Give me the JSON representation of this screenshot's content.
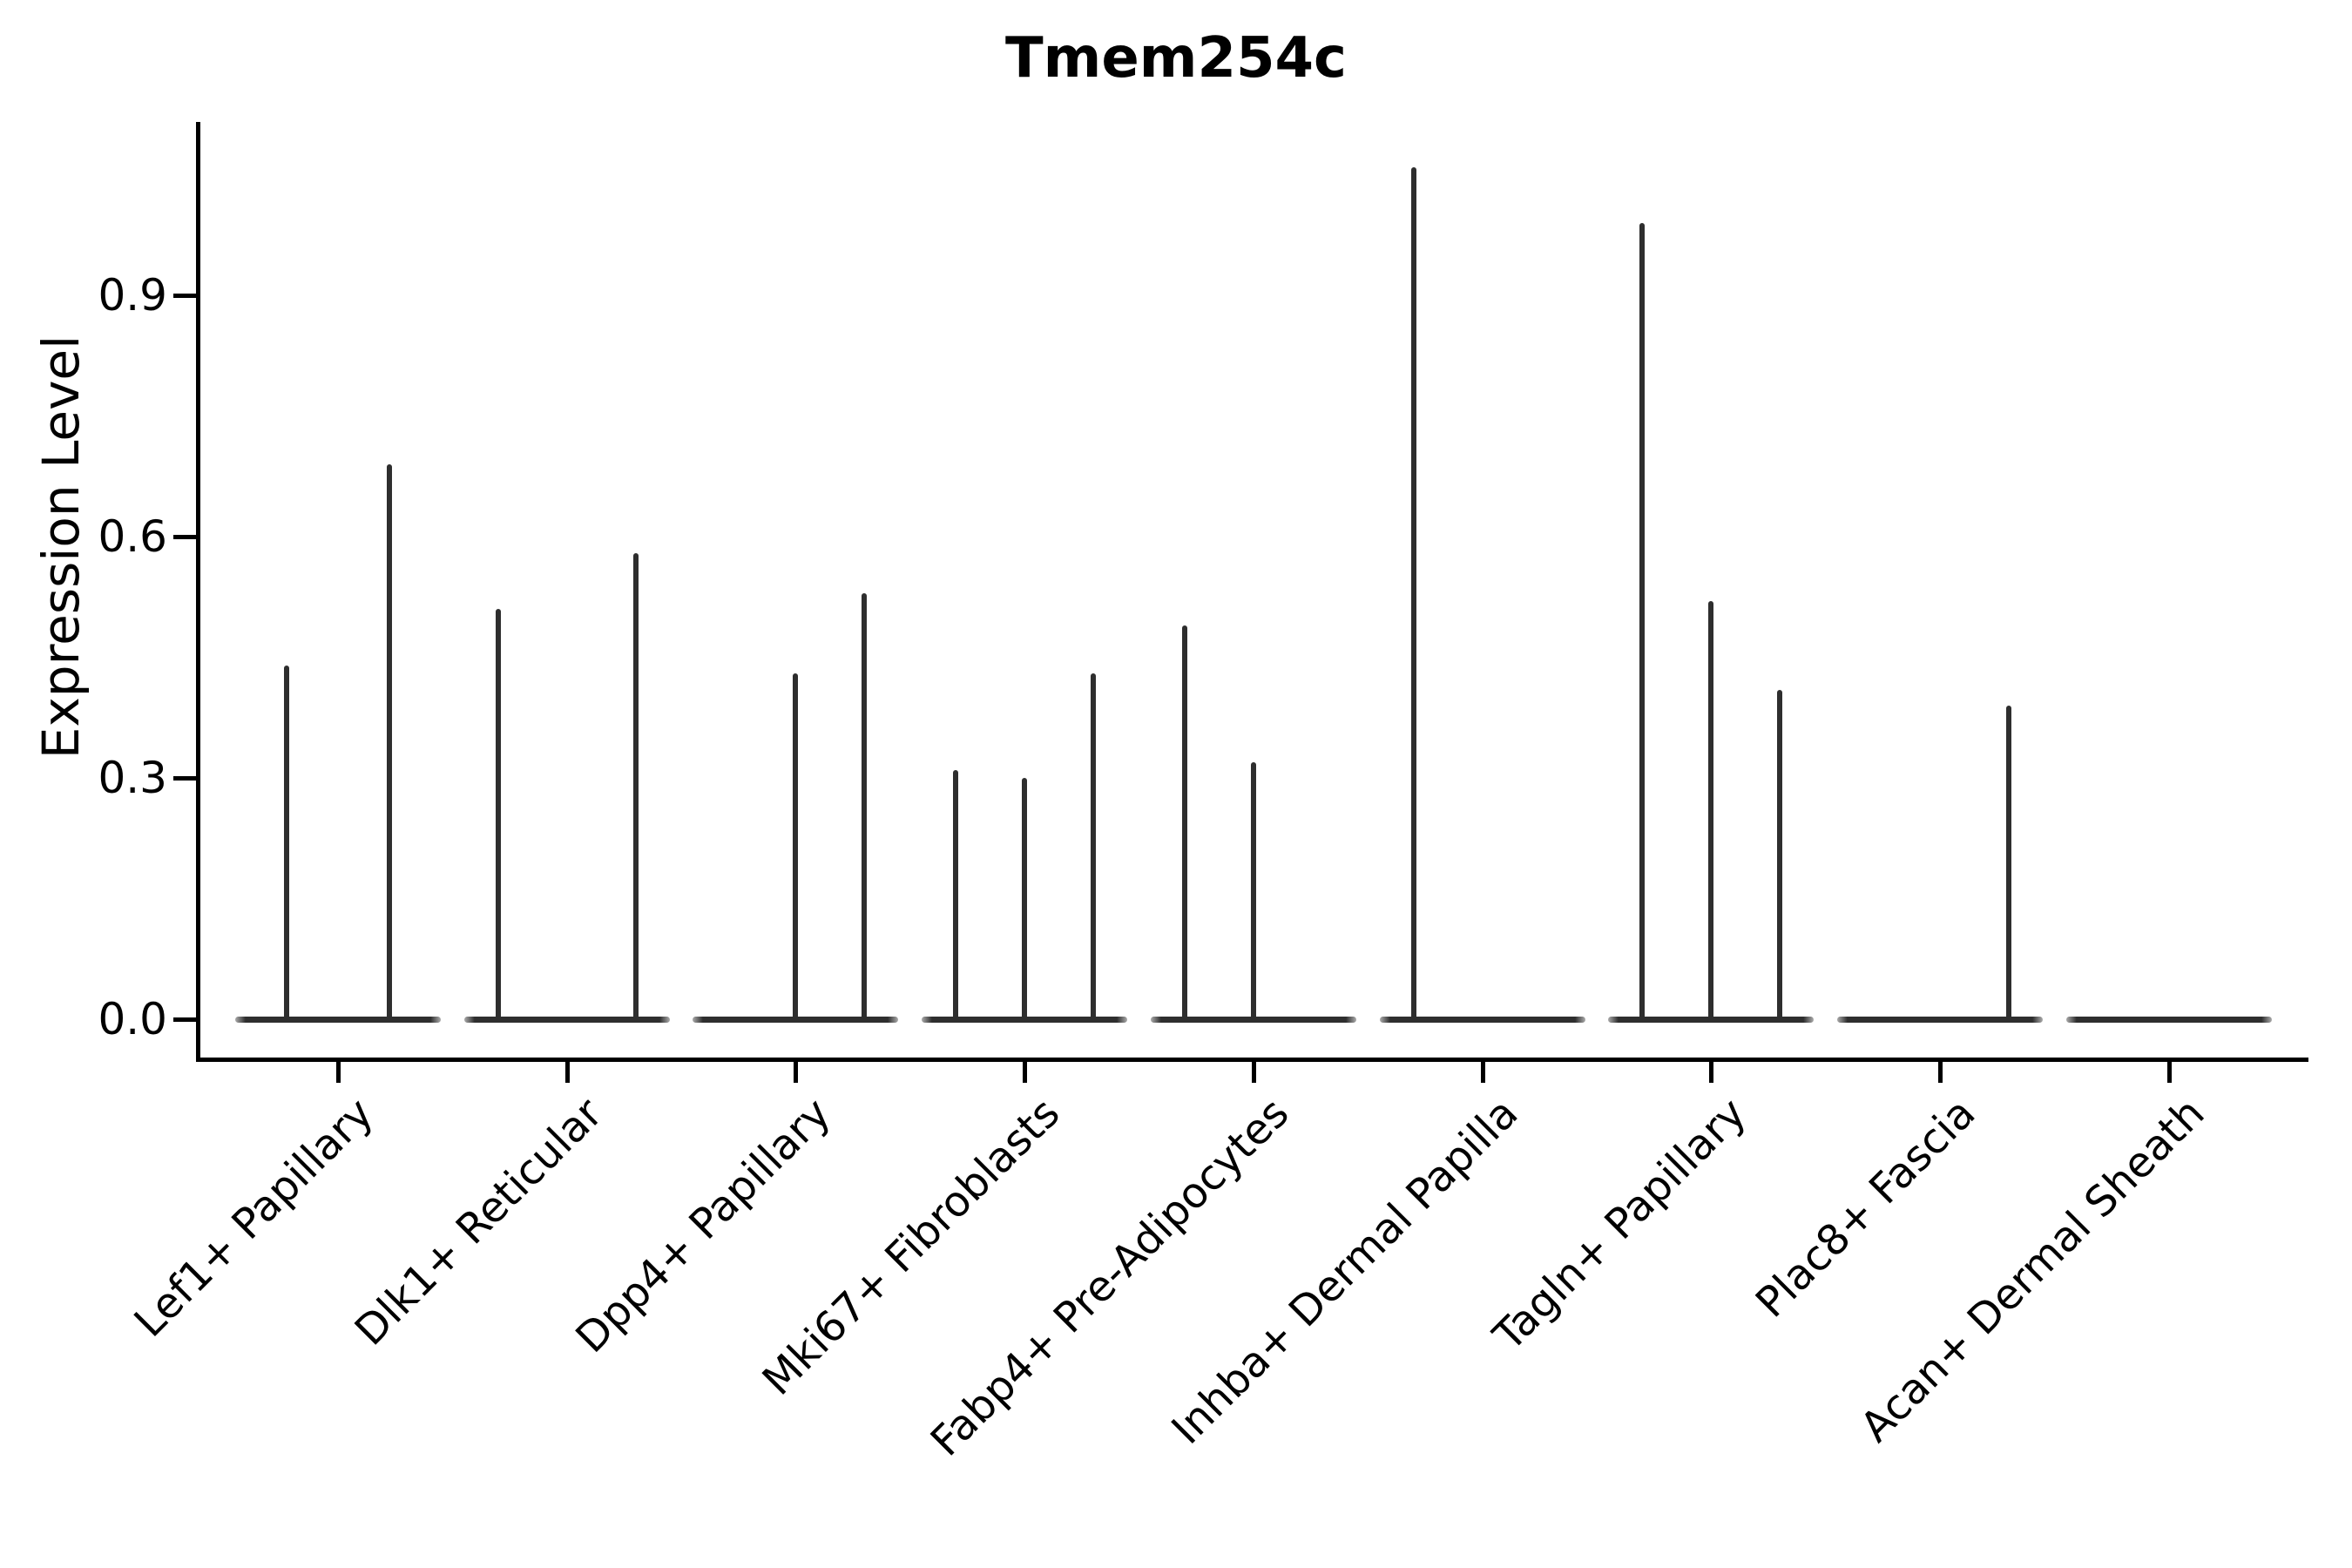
{
  "chart_data": {
    "type": "violin",
    "title": "Tmem254c",
    "xlabel": "",
    "ylabel": "Expression Level",
    "ylim": [
      -0.05,
      1.12
    ],
    "yticks": [
      {
        "value": 0.0,
        "label": "0.0"
      },
      {
        "value": 0.3,
        "label": "0.3"
      },
      {
        "value": 0.6,
        "label": "0.6"
      },
      {
        "value": 0.9,
        "label": "0.9"
      }
    ],
    "grid": false,
    "legend": "none",
    "ink_color": "#2e2e2e",
    "violin_style": "flat base at 0 expression with thin density spikes rising to each group's max expression",
    "categories": [
      "Lef1+ Papillary",
      "Dlk1+ Reticular",
      "Dpp4+ Papillary",
      "Mki67+ Fibroblasts",
      "Fabp4+ Pre-Adipocytes",
      "Inhba+ Dermal Papilla",
      "Tagln+ Papillary",
      "Plac8+ Fascia",
      "Acan+ Dermal Sheath"
    ],
    "violins": [
      {
        "category": "Lef1+ Papillary",
        "groups": [
          {
            "offset_frac": -0.225,
            "max_expression": 0.44
          },
          {
            "offset_frac": 0.225,
            "max_expression": 0.69
          }
        ]
      },
      {
        "category": "Dlk1+ Reticular",
        "groups": [
          {
            "offset_frac": -0.3,
            "max_expression": 0.51
          },
          {
            "offset_frac": 0.3,
            "max_expression": 0.58
          }
        ]
      },
      {
        "category": "Dpp4+ Papillary",
        "groups": [
          {
            "offset_frac": 0.0,
            "max_expression": 0.43
          },
          {
            "offset_frac": 0.3,
            "max_expression": 0.53
          }
        ]
      },
      {
        "category": "Mki67+ Fibroblasts",
        "groups": [
          {
            "offset_frac": -0.3,
            "max_expression": 0.31
          },
          {
            "offset_frac": 0.0,
            "max_expression": 0.3
          },
          {
            "offset_frac": 0.3,
            "max_expression": 0.43
          }
        ]
      },
      {
        "category": "Fabp4+ Pre-Adipocytes",
        "groups": [
          {
            "offset_frac": -0.3,
            "max_expression": 0.49
          },
          {
            "offset_frac": 0.0,
            "max_expression": 0.32
          }
        ]
      },
      {
        "category": "Inhba+ Dermal Papilla",
        "groups": [
          {
            "offset_frac": -0.3,
            "max_expression": 1.06
          }
        ]
      },
      {
        "category": "Tagln+ Papillary",
        "groups": [
          {
            "offset_frac": -0.3,
            "max_expression": 0.99
          },
          {
            "offset_frac": 0.0,
            "max_expression": 0.52
          },
          {
            "offset_frac": 0.3,
            "max_expression": 0.41
          }
        ]
      },
      {
        "category": "Plac8+ Fascia",
        "groups": [
          {
            "offset_frac": 0.3,
            "max_expression": 0.39
          }
        ]
      },
      {
        "category": "Acan+ Dermal Sheath",
        "groups": []
      }
    ]
  }
}
